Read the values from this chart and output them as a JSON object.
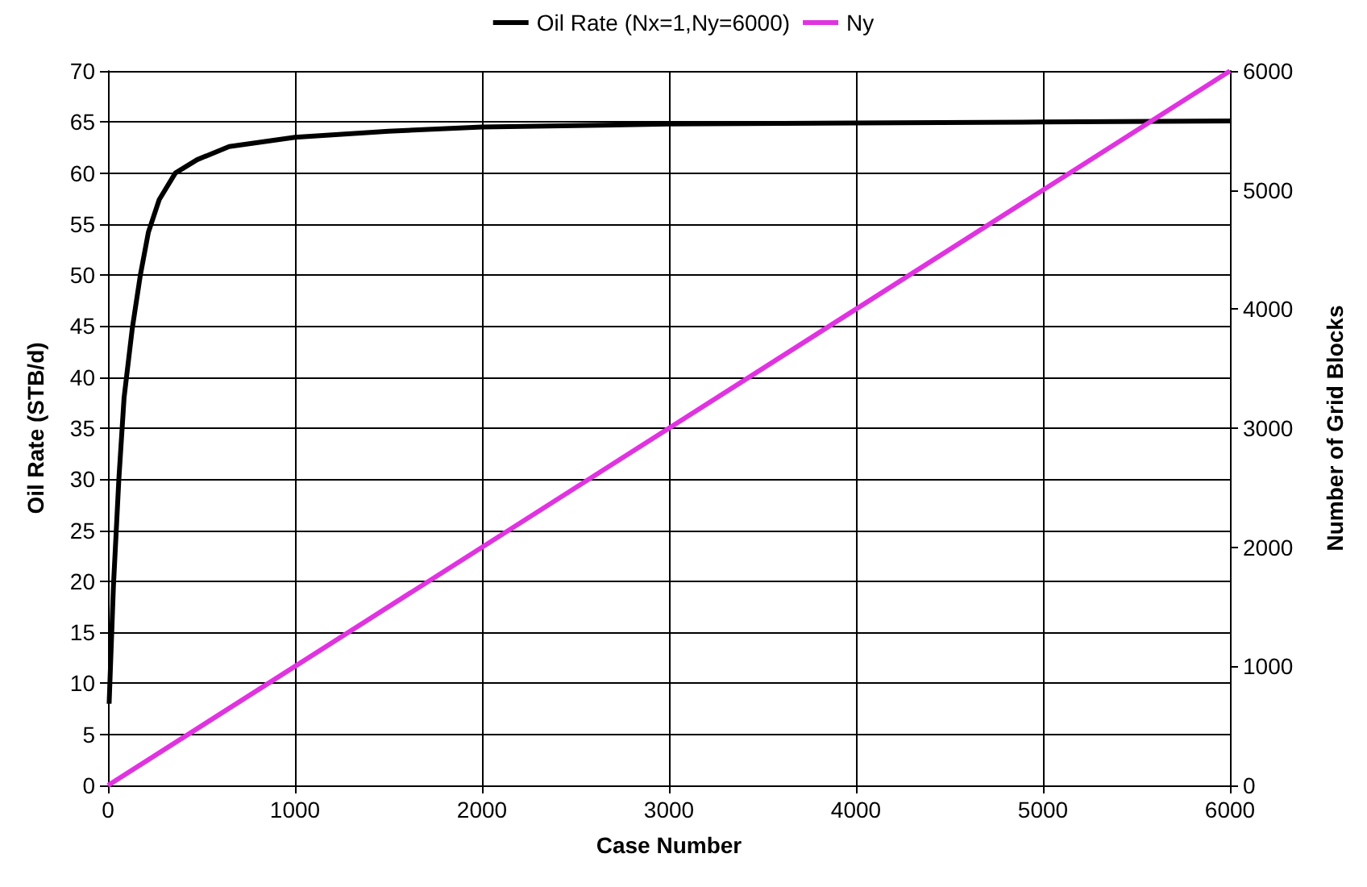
{
  "chart_data": {
    "type": "line",
    "xlabel": "Case Number",
    "ylabel": "Oil Rate (STB/d)",
    "y2label": "Number of Grid Blocks",
    "series": [
      {
        "name": "Oil Rate (Nx=1,Ny=6000)",
        "color": "#000000",
        "x": [
          6,
          29,
          58,
          86,
          130,
          173,
          216,
          274,
          360,
          476,
          648,
          1000,
          1500,
          2000,
          3000,
          4000,
          5000,
          6000
        ],
        "values": [
          8,
          19.5,
          30,
          38,
          44.8,
          50,
          54.2,
          57.4,
          60,
          61.3,
          62.6,
          63.5,
          64.1,
          64.5,
          64.8,
          64.9,
          65,
          65.1
        ]
      },
      {
        "name": "Ny",
        "color": "#e033e0",
        "axis": "y2",
        "x": [
          0,
          6000
        ],
        "values": [
          0,
          6000
        ]
      }
    ],
    "xlim": [
      0,
      6000
    ],
    "xticks": [
      0,
      1000,
      2000,
      3000,
      4000,
      5000,
      6000
    ],
    "ylim": [
      0,
      70
    ],
    "yticks": [
      0,
      5,
      10,
      15,
      20,
      25,
      30,
      35,
      40,
      45,
      50,
      55,
      60,
      65,
      70
    ],
    "y2lim": [
      0,
      6000
    ],
    "y2ticks": [
      0,
      1000,
      2000,
      3000,
      4000,
      5000,
      6000
    ],
    "grid": true,
    "legend": "top",
    "marker": "none",
    "line_style": "solid"
  }
}
